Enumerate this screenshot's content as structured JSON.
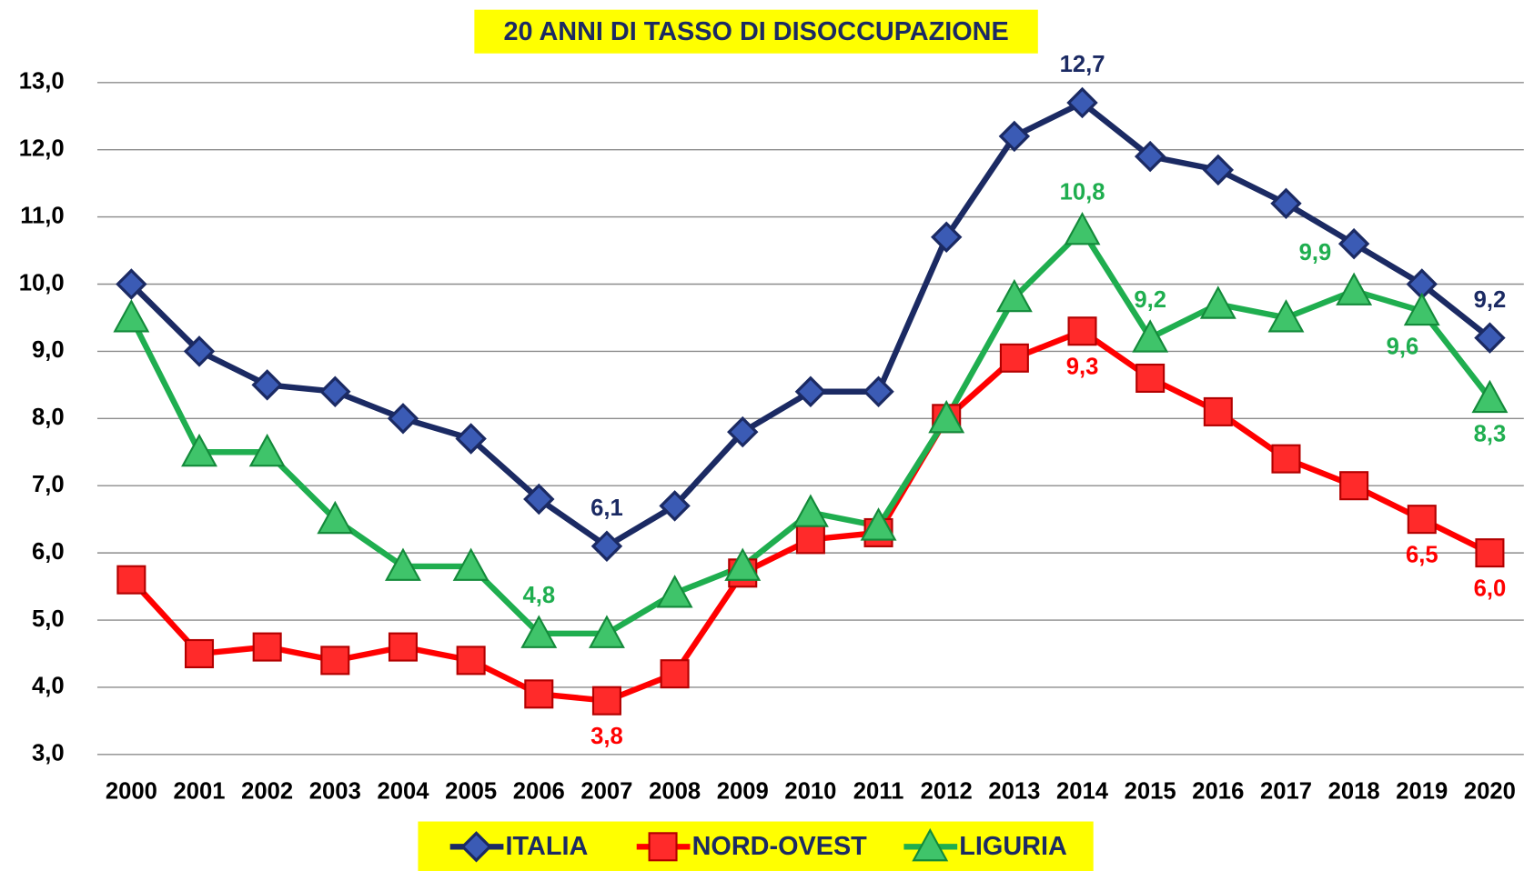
{
  "chart_data": {
    "type": "line",
    "title": "20 ANNI DI TASSO DI DISOCCUPAZIONE",
    "categories": [
      "2000",
      "2001",
      "2002",
      "2003",
      "2004",
      "2005",
      "2006",
      "2007",
      "2008",
      "2009",
      "2010",
      "2011",
      "2012",
      "2013",
      "2014",
      "2015",
      "2016",
      "2017",
      "2018",
      "2019",
      "2020"
    ],
    "ylim": [
      3,
      13
    ],
    "yticks": [
      {
        "value": 3,
        "label": "3,0"
      },
      {
        "value": 4,
        "label": "4,0"
      },
      {
        "value": 5,
        "label": "5,0"
      },
      {
        "value": 6,
        "label": "6,0"
      },
      {
        "value": 7,
        "label": "7,0"
      },
      {
        "value": 8,
        "label": "8,0"
      },
      {
        "value": 9,
        "label": "9,0"
      },
      {
        "value": 10,
        "label": "10,0"
      },
      {
        "value": 11,
        "label": "11,0"
      },
      {
        "value": 12,
        "label": "12,0"
      },
      {
        "value": 13,
        "label": "13,0"
      }
    ],
    "grid": true,
    "legend": "bottom",
    "series": [
      {
        "name": "ITALIA",
        "color": "#1b2a63",
        "marker": "diamond",
        "values": [
          10.0,
          9.0,
          8.5,
          8.4,
          8.0,
          7.7,
          6.8,
          6.1,
          6.7,
          7.8,
          8.4,
          8.4,
          10.7,
          12.2,
          12.7,
          11.9,
          11.7,
          11.2,
          10.6,
          10.0,
          9.2
        ],
        "value_labels": [
          null,
          null,
          null,
          null,
          null,
          null,
          null,
          "6,1",
          null,
          null,
          null,
          null,
          null,
          null,
          "12,7",
          null,
          null,
          null,
          null,
          null,
          "9,2"
        ]
      },
      {
        "name": "NORD-OVEST",
        "color": "#ff0000",
        "marker": "square",
        "values": [
          5.6,
          4.5,
          4.6,
          4.4,
          4.6,
          4.4,
          3.9,
          3.8,
          4.2,
          5.7,
          6.2,
          6.3,
          8.0,
          8.9,
          9.3,
          8.6,
          8.1,
          7.4,
          7.0,
          6.5,
          6.0
        ],
        "value_labels": [
          null,
          null,
          null,
          null,
          null,
          null,
          null,
          "3,8",
          null,
          null,
          null,
          null,
          null,
          null,
          "9,3",
          null,
          null,
          null,
          null,
          "6,5",
          "6,0"
        ]
      },
      {
        "name": "LIGURIA",
        "color": "#1fae4f",
        "marker": "triangle",
        "values": [
          9.5,
          7.5,
          7.5,
          6.5,
          5.8,
          5.8,
          4.8,
          4.8,
          5.4,
          5.8,
          6.6,
          6.4,
          8.0,
          9.8,
          10.8,
          9.2,
          9.7,
          9.5,
          9.9,
          9.6,
          8.3
        ],
        "value_labels": [
          null,
          null,
          null,
          null,
          null,
          null,
          "4,8",
          null,
          null,
          null,
          null,
          null,
          null,
          null,
          "10,8",
          "9,2",
          null,
          null,
          "9,9",
          "9,6",
          "8,3"
        ]
      }
    ]
  }
}
